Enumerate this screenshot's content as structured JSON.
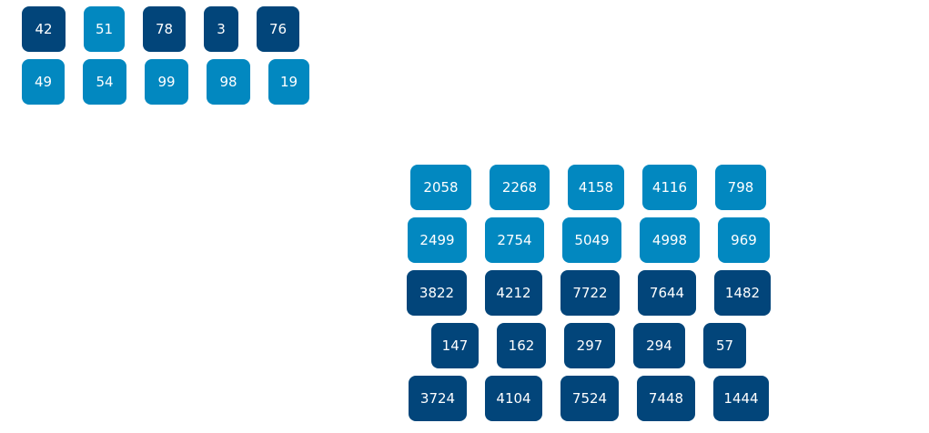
{
  "colors": {
    "dark": "#02457a",
    "light": "#0288c0",
    "text": "#ffffff",
    "background": "#ffffff"
  },
  "small_grid": {
    "rows": [
      [
        {
          "value": "42",
          "color": "dark"
        },
        {
          "value": "51",
          "color": "light"
        },
        {
          "value": "78",
          "color": "dark"
        },
        {
          "value": "3",
          "color": "dark"
        },
        {
          "value": "76",
          "color": "dark"
        }
      ],
      [
        {
          "value": "49",
          "color": "light"
        },
        {
          "value": "54",
          "color": "light"
        },
        {
          "value": "99",
          "color": "light"
        },
        {
          "value": "98",
          "color": "light"
        },
        {
          "value": "19",
          "color": "light"
        }
      ]
    ]
  },
  "large_grid": {
    "rows": [
      [
        {
          "value": "2058",
          "color": "light"
        },
        {
          "value": "2268",
          "color": "light"
        },
        {
          "value": "4158",
          "color": "light"
        },
        {
          "value": "4116",
          "color": "light"
        },
        {
          "value": "798",
          "color": "light"
        }
      ],
      [
        {
          "value": "2499",
          "color": "light"
        },
        {
          "value": "2754",
          "color": "light"
        },
        {
          "value": "5049",
          "color": "light"
        },
        {
          "value": "4998",
          "color": "light"
        },
        {
          "value": "969",
          "color": "light"
        }
      ],
      [
        {
          "value": "3822",
          "color": "dark"
        },
        {
          "value": "4212",
          "color": "dark"
        },
        {
          "value": "7722",
          "color": "dark"
        },
        {
          "value": "7644",
          "color": "dark"
        },
        {
          "value": "1482",
          "color": "dark"
        }
      ],
      [
        {
          "value": "147",
          "color": "dark"
        },
        {
          "value": "162",
          "color": "dark"
        },
        {
          "value": "297",
          "color": "dark"
        },
        {
          "value": "294",
          "color": "dark"
        },
        {
          "value": "57",
          "color": "dark"
        }
      ],
      [
        {
          "value": "3724",
          "color": "dark"
        },
        {
          "value": "4104",
          "color": "dark"
        },
        {
          "value": "7524",
          "color": "dark"
        },
        {
          "value": "7448",
          "color": "dark"
        },
        {
          "value": "1444",
          "color": "dark"
        }
      ]
    ]
  }
}
